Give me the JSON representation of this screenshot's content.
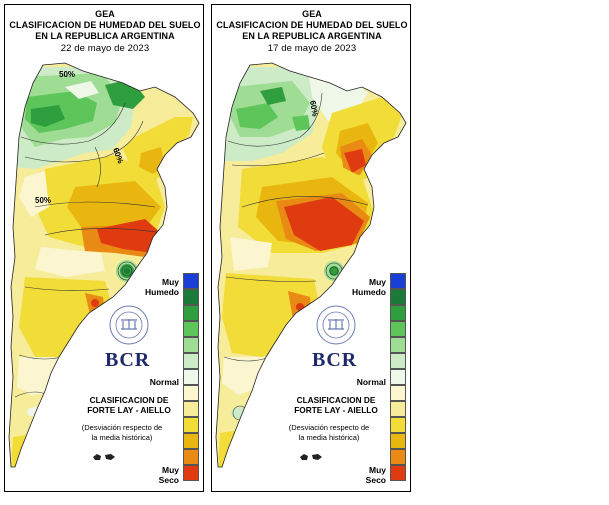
{
  "panels": [
    {
      "org": "GEA",
      "title_line1": "CLASIFICACION DE HUMEDAD DEL SUELO",
      "title_line2": "EN LA REPUBLICA ARGENTINA",
      "date": "22 de mayo de 2023",
      "contour_labels": [
        "50%",
        "60%",
        "50%"
      ]
    },
    {
      "org": "GEA",
      "title_line1": "CLASIFICACION DE HUMEDAD DEL SUELO",
      "title_line2": "EN LA REPUBLICA ARGENTINA",
      "date": "17 de mayo de 2023",
      "contour_labels": [
        "60%"
      ]
    }
  ],
  "legend": {
    "top_label_1": "Muy",
    "top_label_2": "Humedo",
    "mid_label": "Normal",
    "bottom_label_1": "Muy",
    "bottom_label_2": "Seco",
    "colors": [
      "#1a3fd6",
      "#1a7a3a",
      "#2e9e3e",
      "#5ec55b",
      "#9fdc94",
      "#cdebc6",
      "#eef7e8",
      "#fbf6d0",
      "#f6ec9a",
      "#f1dc38",
      "#e9b60f",
      "#e98a14",
      "#e03a10"
    ]
  },
  "logo": {
    "text": "BCR"
  },
  "method": {
    "line1": "CLASIFICACION DE",
    "line2": "FORTE LAY - AIELLO"
  },
  "description": {
    "line1": "(Desviación respecto de",
    "line2": "la media histórica)"
  }
}
